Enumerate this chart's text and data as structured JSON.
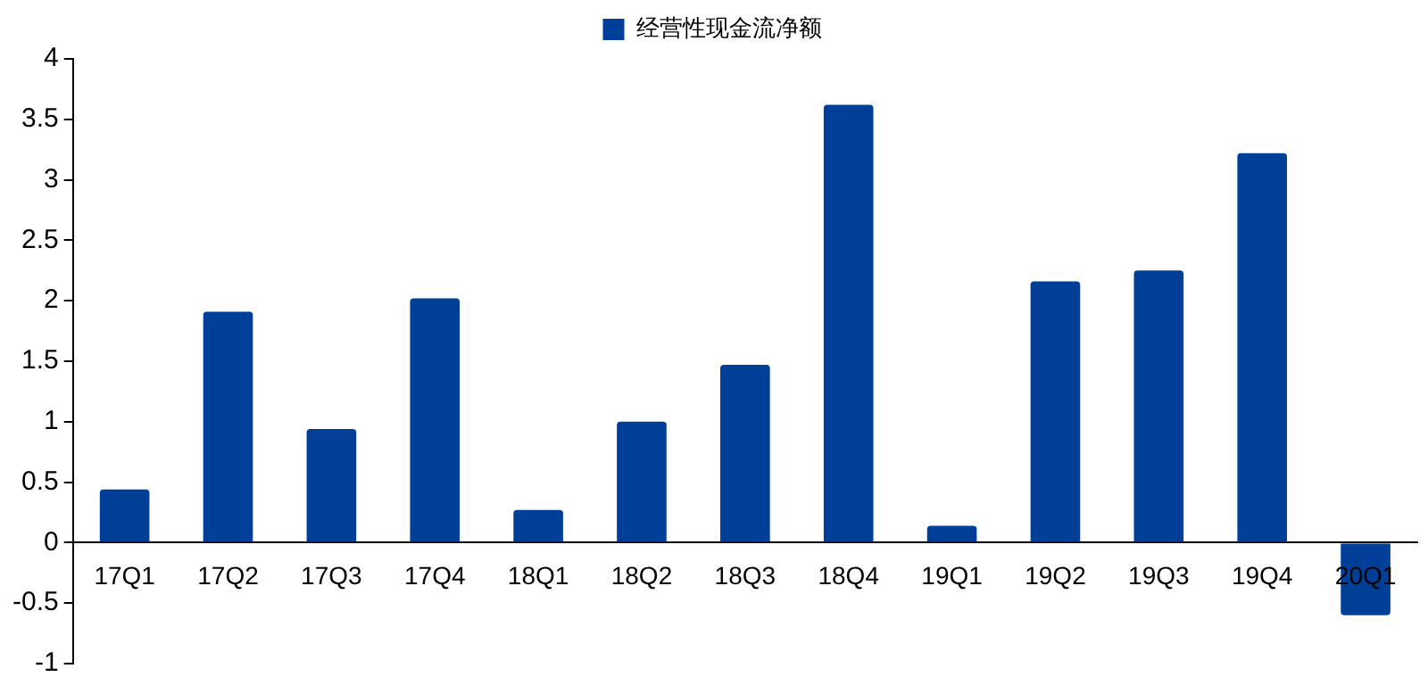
{
  "chart_data": {
    "type": "bar",
    "categories": [
      "17Q1",
      "17Q2",
      "17Q3",
      "17Q4",
      "18Q1",
      "18Q2",
      "18Q3",
      "18Q4",
      "19Q1",
      "19Q2",
      "19Q3",
      "19Q4",
      "20Q1"
    ],
    "series": [
      {
        "name": "经营性现金流净额",
        "color": "#003f98",
        "values": [
          0.44,
          1.91,
          0.94,
          2.02,
          0.27,
          1.0,
          1.47,
          3.62,
          0.14,
          2.16,
          2.25,
          3.22,
          -0.6
        ]
      }
    ],
    "ylim": [
      -1,
      4
    ],
    "yticks": [
      -1,
      -0.5,
      0,
      0.5,
      1,
      1.5,
      2,
      2.5,
      3,
      3.5,
      4
    ],
    "grid": false,
    "legend": "top"
  }
}
